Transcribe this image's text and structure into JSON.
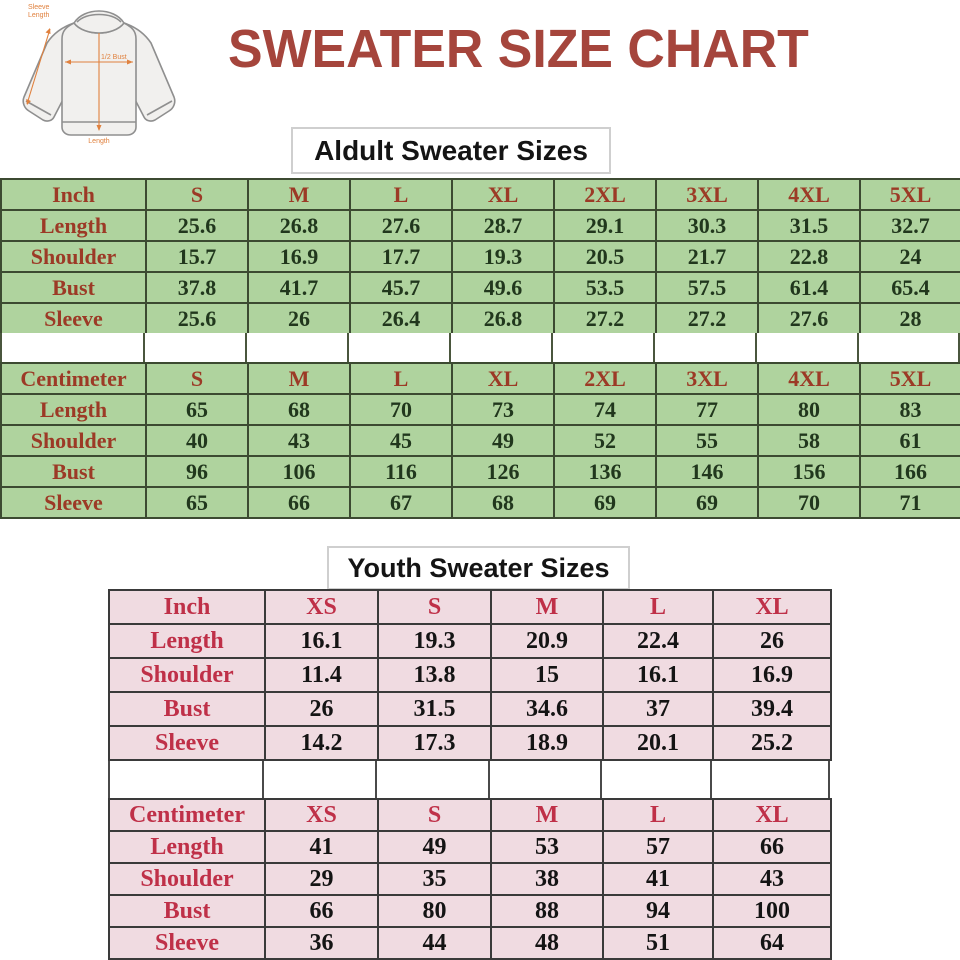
{
  "page": {
    "title": "SWEATER SIZE CHART"
  },
  "colors": {
    "title_text": "#a5453c",
    "adult_table_bg": "#afd39e",
    "adult_header_text": "#9c3a26",
    "adult_value_text": "#21371d",
    "youth_table_bg": "#f0dbe1",
    "youth_header_text": "#bf3048",
    "youth_value_text": "#141414",
    "annotation_orange": "#e0813e"
  },
  "illustration": {
    "sleeve_label_line1": "Sleeve",
    "sleeve_label_line2": "Length",
    "bust_label": "1/2 Bust",
    "length_label": "Length"
  },
  "adult": {
    "heading": "Aldult Sweater Sizes",
    "inch": {
      "unit_label": "Inch",
      "sizes": [
        "S",
        "M",
        "L",
        "XL",
        "2XL",
        "3XL",
        "4XL",
        "5XL"
      ],
      "rows": [
        {
          "label": "Length",
          "values": [
            "25.6",
            "26.8",
            "27.6",
            "28.7",
            "29.1",
            "30.3",
            "31.5",
            "32.7"
          ]
        },
        {
          "label": "Shoulder",
          "values": [
            "15.7",
            "16.9",
            "17.7",
            "19.3",
            "20.5",
            "21.7",
            "22.8",
            "24"
          ]
        },
        {
          "label": "Bust",
          "values": [
            "37.8",
            "41.7",
            "45.7",
            "49.6",
            "53.5",
            "57.5",
            "61.4",
            "65.4"
          ]
        },
        {
          "label": "Sleeve",
          "values": [
            "25.6",
            "26",
            "26.4",
            "26.8",
            "27.2",
            "27.2",
            "27.6",
            "28"
          ]
        }
      ]
    },
    "cm": {
      "unit_label": "Centimeter",
      "sizes": [
        "S",
        "M",
        "L",
        "XL",
        "2XL",
        "3XL",
        "4XL",
        "5XL"
      ],
      "rows": [
        {
          "label": "Length",
          "values": [
            "65",
            "68",
            "70",
            "73",
            "74",
            "77",
            "80",
            "83"
          ]
        },
        {
          "label": "Shoulder",
          "values": [
            "40",
            "43",
            "45",
            "49",
            "52",
            "55",
            "58",
            "61"
          ]
        },
        {
          "label": "Bust",
          "values": [
            "96",
            "106",
            "116",
            "126",
            "136",
            "146",
            "156",
            "166"
          ]
        },
        {
          "label": "Sleeve",
          "values": [
            "65",
            "66",
            "67",
            "68",
            "69",
            "69",
            "70",
            "71"
          ]
        }
      ]
    }
  },
  "youth": {
    "heading": "Youth Sweater Sizes",
    "inch": {
      "unit_label": "Inch",
      "sizes": [
        "XS",
        "S",
        "M",
        "L",
        "XL"
      ],
      "rows": [
        {
          "label": "Length",
          "values": [
            "16.1",
            "19.3",
            "20.9",
            "22.4",
            "26"
          ]
        },
        {
          "label": "Shoulder",
          "values": [
            "11.4",
            "13.8",
            "15",
            "16.1",
            "16.9"
          ]
        },
        {
          "label": "Bust",
          "values": [
            "26",
            "31.5",
            "34.6",
            "37",
            "39.4"
          ]
        },
        {
          "label": "Sleeve",
          "values": [
            "14.2",
            "17.3",
            "18.9",
            "20.1",
            "25.2"
          ]
        }
      ]
    },
    "cm": {
      "unit_label": "Centimeter",
      "sizes": [
        "XS",
        "S",
        "M",
        "L",
        "XL"
      ],
      "rows": [
        {
          "label": "Length",
          "values": [
            "41",
            "49",
            "53",
            "57",
            "66"
          ]
        },
        {
          "label": "Shoulder",
          "values": [
            "29",
            "35",
            "38",
            "41",
            "43"
          ]
        },
        {
          "label": "Bust",
          "values": [
            "66",
            "80",
            "88",
            "94",
            "100"
          ]
        },
        {
          "label": "Sleeve",
          "values": [
            "36",
            "44",
            "48",
            "51",
            "64"
          ]
        }
      ]
    }
  }
}
